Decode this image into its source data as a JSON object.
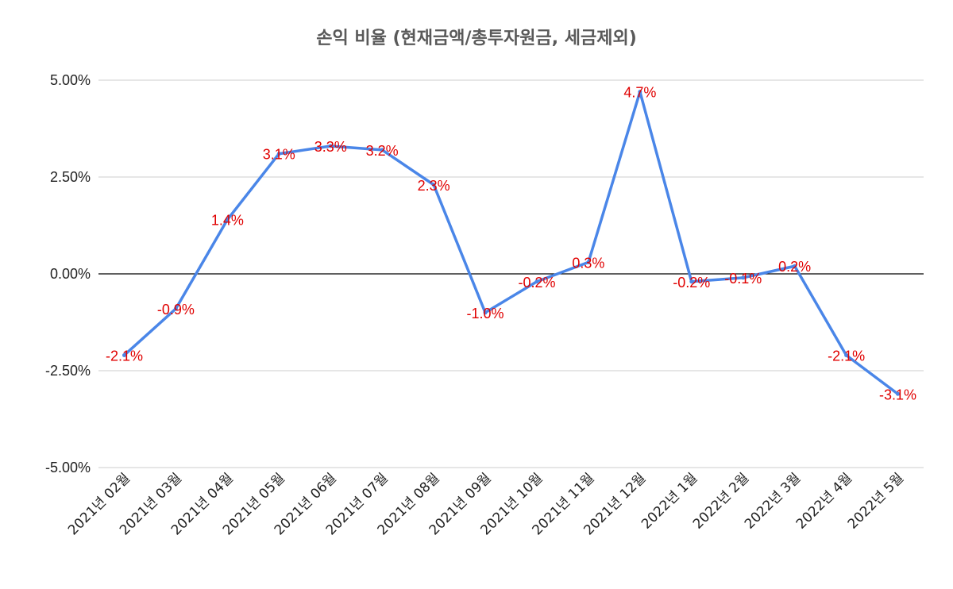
{
  "chart_data": {
    "type": "line",
    "title": "손익 비율 (현재금액/총투자원금, 세금제외)",
    "categories": [
      "2021년 02월",
      "2021년 03월",
      "2021년 04월",
      "2021년 05월",
      "2021년 06월",
      "2021년 07월",
      "2021년 08월",
      "2021년 09월",
      "2021년 10월",
      "2021년 11월",
      "2021년 12월",
      "2022년 1월",
      "2022년 2월",
      "2022년 3월",
      "2022년 4월",
      "2022년 5월"
    ],
    "series": [
      {
        "values": [
          -2.1,
          -0.9,
          1.4,
          3.1,
          3.3,
          3.2,
          2.3,
          -1.0,
          -0.2,
          0.3,
          4.7,
          -0.2,
          -0.1,
          0.2,
          -2.1,
          -3.1
        ],
        "data_labels": [
          "-2.1%",
          "-0.9%",
          "1.4%",
          "3.1%",
          "3.3%",
          "3.2%",
          "2.3%",
          "-1.0%",
          "-0.2%",
          "0.3%",
          "4.7%",
          "-0.2%",
          "-0.1%",
          "0.2%",
          "-2.1%",
          "-3.1%"
        ],
        "color": "#4a86e8"
      }
    ],
    "yticks": [
      5.0,
      2.5,
      0.0,
      -2.5,
      -5.0
    ],
    "ytick_labels": [
      "5.00%",
      "2.50%",
      "0.00%",
      "-2.50%",
      "-5.00%"
    ],
    "ylim": [
      -5.0,
      5.0
    ],
    "xlabel": "",
    "ylabel": "",
    "grid": true,
    "legend": "none",
    "label_color": "#e00000",
    "grid_color": "#cccccc",
    "zero_line_color": "#000000"
  }
}
